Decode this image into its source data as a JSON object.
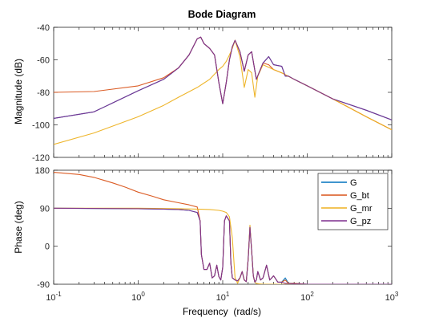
{
  "chart_data": [
    {
      "type": "line",
      "panel": "magnitude",
      "title": "Bode Diagram",
      "ylabel": "Magnitude (dB)",
      "xscale": "log",
      "xlim": [
        0.1,
        1000
      ],
      "ylim": [
        -120,
        -40
      ],
      "yticks": [
        "-120",
        "-100",
        "-80",
        "-60",
        "-40"
      ],
      "grid": false,
      "series": [
        {
          "name": "G",
          "color": "#0072BD",
          "x": [
            0.1,
            0.3,
            1,
            2,
            3,
            4,
            5,
            5.5,
            6,
            7,
            8,
            9,
            10,
            11,
            12,
            13,
            14,
            16,
            18,
            20,
            22,
            25,
            30,
            35,
            40,
            50,
            55,
            60,
            70,
            100,
            200,
            500,
            1000
          ],
          "y": [
            -96,
            -92,
            -79,
            -72,
            -65,
            -57,
            -47,
            -46,
            -50,
            -53,
            -57,
            -74,
            -87,
            -74,
            -60,
            -52,
            -48,
            -55,
            -67,
            -57,
            -55,
            -72,
            -62,
            -58,
            -63,
            -64,
            -70,
            -70,
            -72,
            -76,
            -84,
            -91,
            -97
          ]
        },
        {
          "name": "G_bt",
          "color": "#D95319",
          "x": [
            0.1,
            0.3,
            1,
            2,
            3,
            4,
            5,
            5.5,
            6,
            7,
            8,
            9,
            10,
            11,
            12,
            13,
            14,
            16,
            18,
            20,
            22,
            25,
            30,
            35,
            40,
            50,
            70,
            100,
            200,
            500,
            1000
          ],
          "y": [
            -80,
            -79.5,
            -76,
            -71,
            -65,
            -57,
            -47,
            -46,
            -50,
            -53,
            -57,
            -74,
            -87,
            -74,
            -60,
            -52,
            -48,
            -55,
            -67,
            -57,
            -55,
            -72,
            -62,
            -63,
            -66,
            -68,
            -72,
            -76,
            -84,
            -95,
            -103
          ]
        },
        {
          "name": "G_mr",
          "color": "#EDB120",
          "x": [
            0.1,
            0.3,
            1,
            2,
            3,
            5,
            7,
            9,
            10,
            11,
            12,
            13,
            14,
            16,
            18,
            20,
            22,
            24,
            26,
            30,
            40,
            50,
            70,
            100,
            200,
            500,
            1000
          ],
          "y": [
            -112,
            -105,
            -95,
            -88,
            -83,
            -77,
            -72,
            -66,
            -64,
            -61,
            -57,
            -53,
            -48,
            -58,
            -77,
            -66,
            -68,
            -83,
            -70,
            -63,
            -66,
            -68,
            -72,
            -76,
            -84,
            -95,
            -103
          ]
        },
        {
          "name": "G_pz",
          "color": "#7E2F8E",
          "x": [
            0.1,
            0.3,
            1,
            2,
            3,
            4,
            5,
            5.5,
            6,
            7,
            8,
            9,
            10,
            11,
            12,
            13,
            14,
            16,
            18,
            20,
            22,
            25,
            30,
            35,
            40,
            50,
            55,
            60,
            70,
            100,
            200,
            500,
            1000
          ],
          "y": [
            -96,
            -92,
            -79,
            -72,
            -65,
            -57,
            -47,
            -46,
            -50,
            -53,
            -57,
            -74,
            -87,
            -74,
            -60,
            -52,
            -48,
            -55,
            -67,
            -57,
            -55,
            -72,
            -62,
            -58,
            -63,
            -64,
            -70,
            -70,
            -72,
            -76,
            -84,
            -91,
            -97
          ]
        }
      ]
    },
    {
      "type": "line",
      "panel": "phase",
      "xlabel": "Frequency  (rad/s)",
      "ylabel": "Phase (deg)",
      "xscale": "log",
      "xlim": [
        0.1,
        1000
      ],
      "ylim": [
        -90,
        180
      ],
      "yticks": [
        "-90",
        "0",
        "90",
        "180"
      ],
      "xticks": [
        {
          "base": "10",
          "exp": "-1"
        },
        {
          "base": "10",
          "exp": "0"
        },
        {
          "base": "10",
          "exp": "1"
        },
        {
          "base": "10",
          "exp": "2"
        },
        {
          "base": "10",
          "exp": "3"
        }
      ],
      "legend": {
        "location": "top-right",
        "entries": [
          "G",
          "G_bt",
          "G_mr",
          "G_pz"
        ]
      },
      "grid": false,
      "series": [
        {
          "name": "G",
          "color": "#0072BD",
          "x": [
            0.1,
            1,
            2,
            3,
            4,
            5,
            5.4,
            5.6,
            6,
            6.5,
            7,
            7.5,
            8,
            8.5,
            9,
            9.5,
            10,
            10.5,
            11,
            12,
            12.5,
            13,
            14,
            15,
            16,
            17,
            18,
            19,
            20,
            21,
            22,
            23,
            24,
            25,
            26,
            28,
            30,
            33,
            36,
            40,
            45,
            50,
            55,
            60,
            70,
            100,
            1000
          ],
          "y": [
            90,
            89,
            88,
            87,
            85,
            80,
            60,
            -20,
            -55,
            -55,
            -40,
            -75,
            -70,
            -45,
            -72,
            -80,
            -50,
            60,
            72,
            60,
            -40,
            -75,
            -80,
            -82,
            -75,
            -60,
            -80,
            -84,
            -30,
            45,
            -10,
            -70,
            -85,
            -80,
            -60,
            -80,
            -75,
            -45,
            -80,
            -70,
            -85,
            -85,
            -75,
            -88,
            -88,
            -90,
            -90
          ]
        },
        {
          "name": "G_bt",
          "color": "#D95319",
          "x": [
            0.1,
            0.2,
            0.3,
            0.5,
            0.7,
            1,
            1.5,
            2,
            3,
            4,
            5,
            5.4,
            5.6,
            6,
            6.5,
            7,
            7.5,
            8,
            8.5,
            9,
            9.5,
            10,
            10.5,
            11,
            12,
            12.5,
            13,
            14,
            15,
            16,
            17,
            18,
            19,
            20,
            21,
            22,
            23,
            24,
            25,
            26,
            28,
            30,
            33,
            36,
            40,
            45,
            50,
            55,
            60,
            70,
            100,
            1000
          ],
          "y": [
            175,
            170,
            163,
            150,
            140,
            128,
            118,
            110,
            103,
            98,
            93,
            60,
            -20,
            -55,
            -55,
            -40,
            -75,
            -70,
            -45,
            -72,
            -80,
            -50,
            60,
            72,
            60,
            -40,
            -75,
            -80,
            -82,
            -75,
            -60,
            -80,
            -84,
            -30,
            45,
            -10,
            -70,
            -85,
            -80,
            -60,
            -80,
            -75,
            -45,
            -80,
            -70,
            -85,
            -85,
            -80,
            -88,
            -88,
            -90,
            -90
          ]
        },
        {
          "name": "G_mr",
          "color": "#EDB120",
          "x": [
            0.1,
            1,
            3,
            5,
            7,
            9,
            10,
            11,
            12,
            13,
            14,
            15,
            16,
            17,
            18,
            19,
            20,
            21,
            22,
            23,
            24,
            25,
            27,
            30,
            40,
            100,
            1000
          ],
          "y": [
            90,
            90,
            89,
            88,
            87,
            85,
            83,
            80,
            70,
            20,
            -75,
            -88,
            -75,
            -60,
            -80,
            -84,
            -30,
            50,
            -10,
            -70,
            -85,
            -88,
            -89,
            -90,
            -90,
            -90,
            -90
          ]
        },
        {
          "name": "G_pz",
          "color": "#7E2F8E",
          "x": [
            0.1,
            1,
            2,
            3,
            4,
            5,
            5.4,
            5.6,
            6,
            6.5,
            7,
            7.5,
            8,
            8.5,
            9,
            9.5,
            10,
            10.5,
            11,
            12,
            12.5,
            13,
            14,
            15,
            16,
            17,
            18,
            19,
            20,
            21,
            22,
            23,
            24,
            25,
            26,
            28,
            30,
            33,
            36,
            40,
            45,
            50,
            55,
            60,
            70,
            100,
            1000
          ],
          "y": [
            90,
            89,
            88,
            87,
            85,
            80,
            60,
            -20,
            -55,
            -55,
            -40,
            -75,
            -70,
            -45,
            -72,
            -80,
            -50,
            60,
            72,
            60,
            -40,
            -75,
            -80,
            -82,
            -75,
            -60,
            -80,
            -84,
            -30,
            45,
            -10,
            -70,
            -85,
            -80,
            -60,
            -80,
            -75,
            -45,
            -80,
            -70,
            -85,
            -85,
            -88,
            -88,
            -89,
            -90,
            -90
          ]
        }
      ]
    }
  ]
}
